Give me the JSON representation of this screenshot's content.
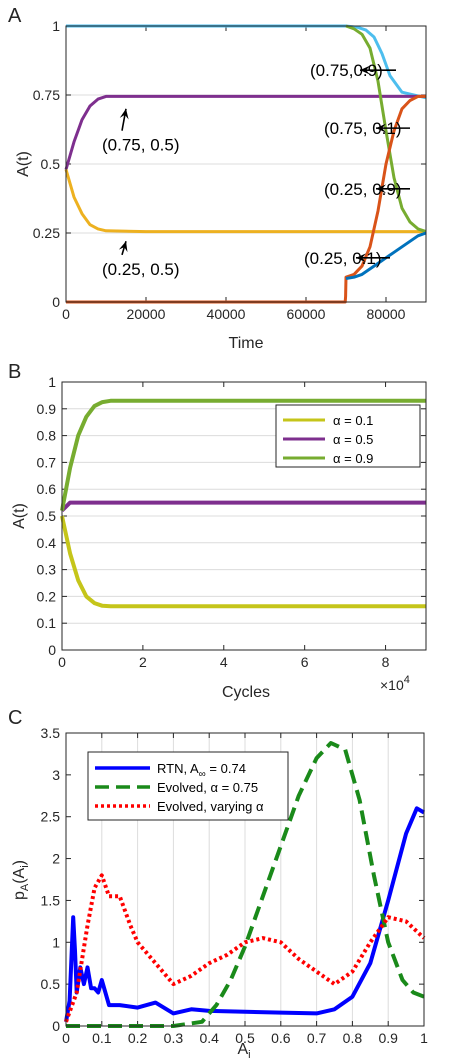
{
  "colors": {
    "axis": "#262626",
    "grid": "#dcdcdc",
    "cyan": "#4DBEEE",
    "purple": "#7E2F8E",
    "yellow": "#EDB120",
    "green": "#77AC30",
    "orange": "#D95319",
    "blue": "#0072BD",
    "yellowB": "#C5C51A",
    "rtn": "#0000FF",
    "evolved": "#1A8A1A",
    "varying": "#FF0000"
  },
  "chart_data": [
    {
      "panel": "A",
      "type": "line",
      "xlabel": "Time",
      "ylabel": "A(t)",
      "xlim": [
        0,
        90000
      ],
      "ylim": [
        0,
        1
      ],
      "xticks": [
        "0",
        "20000",
        "40000",
        "60000",
        "80000"
      ],
      "yticks": [
        "0",
        "0.25",
        "0.5",
        "0.75",
        "1"
      ],
      "grid": "horizontal",
      "series": [
        {
          "name": "(0.75,0.9)",
          "color": "cyan",
          "x": [
            0,
            60000,
            70000,
            73000,
            75000,
            77000,
            79000,
            81000,
            84000,
            90000
          ],
          "y": [
            1,
            1,
            1,
            0.995,
            0.985,
            0.96,
            0.9,
            0.82,
            0.76,
            0.74
          ]
        },
        {
          "name": "(0.75, 0.5)",
          "color": "purple",
          "x": [
            0,
            2000,
            4000,
            6000,
            8000,
            10000,
            20000,
            40000,
            60000,
            90000
          ],
          "y": [
            0.48,
            0.58,
            0.66,
            0.71,
            0.735,
            0.745,
            0.745,
            0.745,
            0.745,
            0.745
          ]
        },
        {
          "name": "(0.25, 0.5)",
          "color": "yellow",
          "x": [
            0,
            2000,
            4000,
            6000,
            8000,
            10000,
            20000,
            40000,
            60000,
            90000
          ],
          "y": [
            0.48,
            0.38,
            0.32,
            0.28,
            0.265,
            0.258,
            0.255,
            0.255,
            0.255,
            0.255
          ]
        },
        {
          "name": "(0.75, 0.1)",
          "color": "green",
          "x": [
            70000,
            72000,
            74000,
            76000,
            78000,
            80000,
            82000,
            84000,
            86000,
            88000,
            90000
          ],
          "y": [
            1,
            0.99,
            0.97,
            0.92,
            0.8,
            0.62,
            0.45,
            0.34,
            0.29,
            0.265,
            0.255
          ]
        },
        {
          "name": "(0.25, 0.9)",
          "color": "orange",
          "x": [
            0,
            69800,
            69900,
            70000,
            72000,
            74000,
            76000,
            78000,
            80000,
            82000,
            84000,
            86000,
            88000,
            90000
          ],
          "y": [
            0,
            0,
            0.02,
            0.09,
            0.1,
            0.13,
            0.2,
            0.33,
            0.5,
            0.62,
            0.7,
            0.73,
            0.745,
            0.745
          ]
        },
        {
          "name": "(0.25, 0.1)",
          "color": "blue",
          "x": [
            70000,
            72000,
            74000,
            76000,
            78000,
            80000,
            82000,
            84000,
            86000,
            88000,
            90000
          ],
          "y": [
            0.085,
            0.09,
            0.1,
            0.12,
            0.14,
            0.16,
            0.18,
            0.2,
            0.22,
            0.24,
            0.25
          ]
        }
      ],
      "annotations": [
        {
          "text": "(0.75,0.9)",
          "x": 61000,
          "y": 0.84,
          "ax": 73500,
          "ay": 0.84
        },
        {
          "text": "(0.75, 0.5)",
          "x": 9000,
          "y": 0.57,
          "ax": 15000,
          "ay": 0.7
        },
        {
          "text": "(0.75, 0.1)",
          "x": 64500,
          "y": 0.63,
          "ax": 77500,
          "ay": 0.63
        },
        {
          "text": "(0.25, 0.9)",
          "x": 64500,
          "y": 0.41,
          "ax": 77500,
          "ay": 0.41
        },
        {
          "text": "(0.25, 0.5)",
          "x": 9000,
          "y": 0.12,
          "ax": 15000,
          "ay": 0.22
        },
        {
          "text": "(0.25, 0.1)",
          "x": 59500,
          "y": 0.16,
          "ax": 72500,
          "ay": 0.16
        }
      ]
    },
    {
      "panel": "B",
      "type": "line",
      "xlabel": "Cycles",
      "ylabel": "A(t)",
      "xlim": [
        0,
        9
      ],
      "ylim": [
        0,
        1
      ],
      "xticks": [
        "0",
        "2",
        "4",
        "6",
        "8"
      ],
      "yticks": [
        "0",
        "0.1",
        "0.2",
        "0.3",
        "0.4",
        "0.5",
        "0.6",
        "0.7",
        "0.8",
        "0.9",
        "1"
      ],
      "x_multiplier": "×10",
      "x_multiplier_exp": "4",
      "grid": "horizontal",
      "legend_placement": "top-right",
      "series": [
        {
          "name": "α = 0.1",
          "color": "yellowB",
          "x": [
            0,
            0.2,
            0.4,
            0.6,
            0.8,
            1.0,
            1.2,
            2,
            4,
            6,
            8,
            9
          ],
          "y": [
            0.5,
            0.36,
            0.26,
            0.2,
            0.175,
            0.165,
            0.163,
            0.163,
            0.163,
            0.163,
            0.163,
            0.163
          ]
        },
        {
          "name": "α = 0.5",
          "color": "purple",
          "x": [
            0,
            0.2,
            0.5,
            1,
            2,
            4,
            6,
            8,
            9
          ],
          "y": [
            0.52,
            0.55,
            0.55,
            0.55,
            0.55,
            0.55,
            0.55,
            0.55,
            0.55
          ]
        },
        {
          "name": "α = 0.9",
          "color": "green",
          "x": [
            0,
            0.2,
            0.4,
            0.6,
            0.8,
            1.0,
            1.2,
            2,
            4,
            6,
            8,
            9
          ],
          "y": [
            0.52,
            0.68,
            0.8,
            0.87,
            0.91,
            0.925,
            0.93,
            0.93,
            0.93,
            0.93,
            0.93,
            0.93
          ]
        }
      ]
    },
    {
      "panel": "C",
      "type": "line",
      "xlabel": "A",
      "xlabel_sub": "i",
      "ylabel": "p",
      "ylabel_sub": "A",
      "ylabel_paren": "(A",
      "ylabel_paren_sub": "i",
      "xlim": [
        0,
        1
      ],
      "ylim": [
        0,
        3.5
      ],
      "xticks": [
        "0",
        "0.1",
        "0.2",
        "0.3",
        "0.4",
        "0.5",
        "0.6",
        "0.7",
        "0.8",
        "0.9",
        "1"
      ],
      "yticks": [
        "0",
        "0.5",
        "1",
        "1.5",
        "2",
        "2.5",
        "3",
        "3.5"
      ],
      "grid": "vertical",
      "legend_placement": "top-left",
      "series": [
        {
          "name": "RTN, A",
          "name_sub": "∞",
          "name_suffix": " = 0.74",
          "color": "rtn",
          "dash": "solid",
          "x": [
            0,
            0.01,
            0.02,
            0.025,
            0.03,
            0.04,
            0.05,
            0.06,
            0.07,
            0.08,
            0.09,
            0.1,
            0.12,
            0.15,
            0.2,
            0.25,
            0.3,
            0.35,
            0.4,
            0.5,
            0.6,
            0.7,
            0.75,
            0.8,
            0.85,
            0.9,
            0.95,
            0.98,
            1.0
          ],
          "y": [
            0.05,
            0.3,
            1.3,
            0.9,
            0.4,
            0.7,
            0.5,
            0.7,
            0.45,
            0.45,
            0.4,
            0.55,
            0.25,
            0.25,
            0.22,
            0.28,
            0.15,
            0.2,
            0.18,
            0.17,
            0.16,
            0.15,
            0.2,
            0.35,
            0.75,
            1.5,
            2.3,
            2.6,
            2.55
          ]
        },
        {
          "name": "Evolved, α = 0.75",
          "color": "evolved",
          "dash": "long",
          "x": [
            0,
            0.3,
            0.38,
            0.42,
            0.46,
            0.5,
            0.55,
            0.6,
            0.65,
            0.7,
            0.74,
            0.78,
            0.82,
            0.86,
            0.9,
            0.94,
            0.97,
            1.0
          ],
          "y": [
            0,
            0,
            0.05,
            0.25,
            0.55,
            0.95,
            1.55,
            2.15,
            2.75,
            3.2,
            3.38,
            3.3,
            2.7,
            1.8,
            1.0,
            0.55,
            0.4,
            0.35
          ]
        },
        {
          "name": "Evolved, varying α",
          "color": "varying",
          "dash": "dot",
          "x": [
            0,
            0.03,
            0.06,
            0.08,
            0.1,
            0.12,
            0.15,
            0.18,
            0.2,
            0.25,
            0.3,
            0.35,
            0.4,
            0.45,
            0.5,
            0.55,
            0.6,
            0.65,
            0.7,
            0.75,
            0.8,
            0.85,
            0.9,
            0.95,
            1.0
          ],
          "y": [
            0.05,
            0.4,
            1.2,
            1.65,
            1.8,
            1.55,
            1.55,
            1.2,
            1.0,
            0.75,
            0.5,
            0.6,
            0.75,
            0.85,
            1.0,
            1.05,
            1.0,
            0.8,
            0.65,
            0.5,
            0.65,
            1.0,
            1.3,
            1.25,
            1.05
          ]
        }
      ]
    }
  ]
}
